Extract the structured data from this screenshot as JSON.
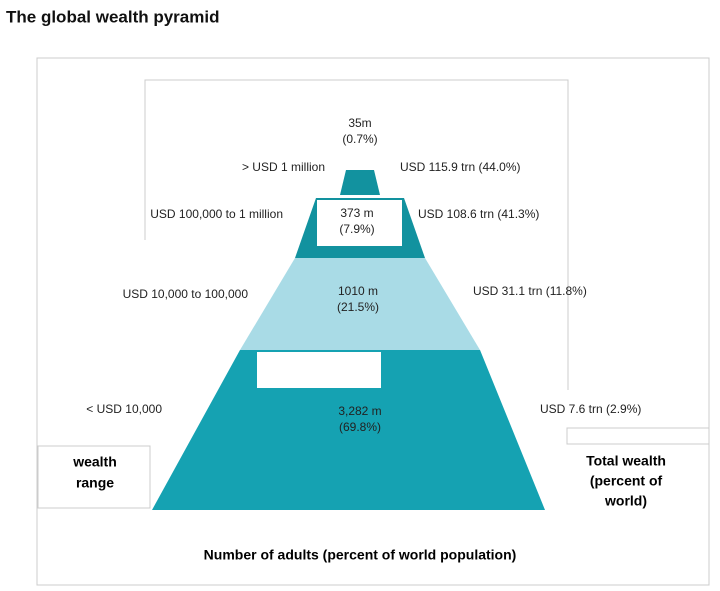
{
  "header": {
    "title": "The global wealth pyramid"
  },
  "tiers": [
    {
      "range": "> USD 1 million",
      "adults": "35m",
      "share": "(0.7%)",
      "wealth": "USD 115.9 trn (44.0%)"
    },
    {
      "range": "USD 100,000 to 1 million",
      "adults": "373 m",
      "share": "(7.9%)",
      "wealth": "USD 108.6 trn (41.3%)"
    },
    {
      "range": "USD 10,000 to 100,000",
      "adults": "1010 m",
      "share": "(21.5%)",
      "wealth": "USD 31.1 trn (11.8%)"
    },
    {
      "range": "< USD 10,000",
      "adults": "3,282 m",
      "share": "(69.8%)",
      "wealth": "USD 7.6 trn (2.9%)"
    }
  ],
  "left_label": [
    "wealth",
    "range"
  ],
  "right_label": [
    "Total wealth",
    "(percent of",
    "world)"
  ],
  "bottom_label": "Number of adults (percent of world population)"
}
